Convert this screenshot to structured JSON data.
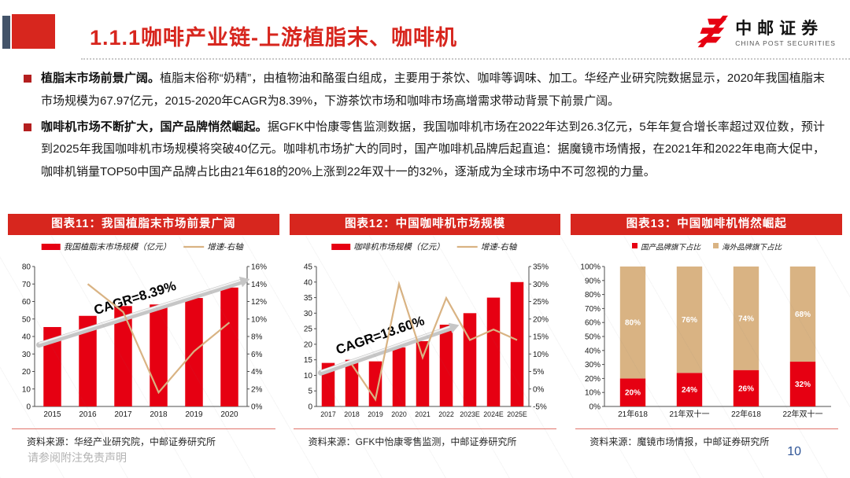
{
  "header": {
    "title": "1.1.1咖啡产业链-上游植脂末、咖啡机",
    "logo_cn": "中邮证券",
    "logo_en": "CHINA POST SECURITIES"
  },
  "bullets": [
    {
      "bold": "植脂末市场前景广阔。",
      "text": "植脂末俗称“奶精”，由植物油和酪蛋白组成，主要用于茶饮、咖啡等调味、加工。华经产业研究院数据显示，2020年我国植脂末市场规模为67.97亿元，2015-2020年CAGR为8.39%，下游茶饮市场和咖啡市场高增需求带动背景下前景广阔。"
    },
    {
      "bold": "咖啡机市场不断扩大，国产品牌悄然崛起。",
      "text": "据GFK中怡康零售监测数据，我国咖啡机市场在2022年达到26.3亿元，5年年复合增长率超过双位数，预计到2025年我国咖啡机市场规模将突破40亿元。咖啡机市场扩大的同时，国产咖啡机品牌后起直追：据魔镜市场情报，在2021年和2022年电商大促中，咖啡机销量TOP50中国产品牌占比由21年618的20%上涨到22年双十一的32%，逐渐成为全球市场中不可忽视的力量。"
    }
  ],
  "colors": {
    "bar_red": "#e60012",
    "header_red": "#d7261e",
    "tan": "#d9b383",
    "slate": "#44546a",
    "separator": "#e2756b",
    "arrow_gray": "#c6c6c6",
    "page_blue": "#2f5597"
  },
  "chart_data": [
    {
      "type": "bar-line",
      "title": "图表11：我国植脂末市场前景广阔",
      "categories": [
        "2015",
        "2016",
        "2017",
        "2018",
        "2019",
        "2020"
      ],
      "series": [
        {
          "name": "我国植脂末市场规模（亿元）",
          "kind": "bar",
          "axis": "left",
          "values": [
            45.4,
            51.8,
            57.4,
            58.3,
            62.0,
            67.97
          ]
        },
        {
          "name": "增速-右轴",
          "kind": "line",
          "axis": "right",
          "values": [
            null,
            14.0,
            10.8,
            1.6,
            6.3,
            9.6
          ]
        }
      ],
      "left_axis": {
        "min": 0,
        "max": 80,
        "step": 10
      },
      "right_axis": {
        "min": 0,
        "max": 16,
        "step": 2,
        "suffix": "%"
      },
      "annotation": "CAGR=8.39%",
      "arrow": {
        "x1": 0.02,
        "y1": 0.44,
        "x2": 0.97,
        "y2": 0.89
      },
      "legend_position": "top",
      "grid": false,
      "source": "资料来源：华经产业研究院，中邮证券研究所"
    },
    {
      "type": "bar-line",
      "title": "图表12：中国咖啡机市场规模",
      "categories": [
        "2017",
        "2018",
        "2019",
        "2020",
        "2021",
        "2022",
        "2023E",
        "2024E",
        "2025E"
      ],
      "series": [
        {
          "name": "咖啡机市场规模（亿元）",
          "kind": "bar",
          "axis": "left",
          "values": [
            14,
            15,
            14.5,
            19,
            21,
            26.3,
            30,
            35,
            40
          ]
        },
        {
          "name": "增速-右轴",
          "kind": "line",
          "axis": "right",
          "values": [
            null,
            7,
            -3,
            30,
            9,
            26,
            14,
            17,
            14
          ]
        }
      ],
      "left_axis": {
        "min": 0,
        "max": 45,
        "step": 5
      },
      "right_axis": {
        "min": -5,
        "max": 35,
        "step": 5,
        "suffix": "%"
      },
      "annotation": "CAGR=13.60%",
      "arrow": {
        "x1": 0.02,
        "y1": 0.24,
        "x2": 0.63,
        "y2": 0.56
      },
      "legend_position": "top",
      "grid": false,
      "source": "资料来源：GFK中怡康零售监测，中邮证券研究所"
    },
    {
      "type": "stacked-bar",
      "title": "图表13：中国咖啡机悄然崛起",
      "categories": [
        "21年618",
        "21年双十一",
        "22年618",
        "22年双十一"
      ],
      "series": [
        {
          "name": "国产品牌旗下占比",
          "color": "#e60012",
          "values": [
            20,
            24,
            26,
            32
          ]
        },
        {
          "name": "海外品牌旗下占比",
          "color": "#d9b383",
          "values": [
            80,
            76,
            74,
            68
          ]
        }
      ],
      "left_axis": {
        "min": 0,
        "max": 100,
        "step": 10,
        "suffix": "%"
      },
      "legend_position": "top",
      "grid": false,
      "source": "资料来源：魔镜市场情报，中邮证券研究所"
    }
  ],
  "footer": {
    "disclaimer": "请参阅附注免责声明",
    "page": "10"
  }
}
